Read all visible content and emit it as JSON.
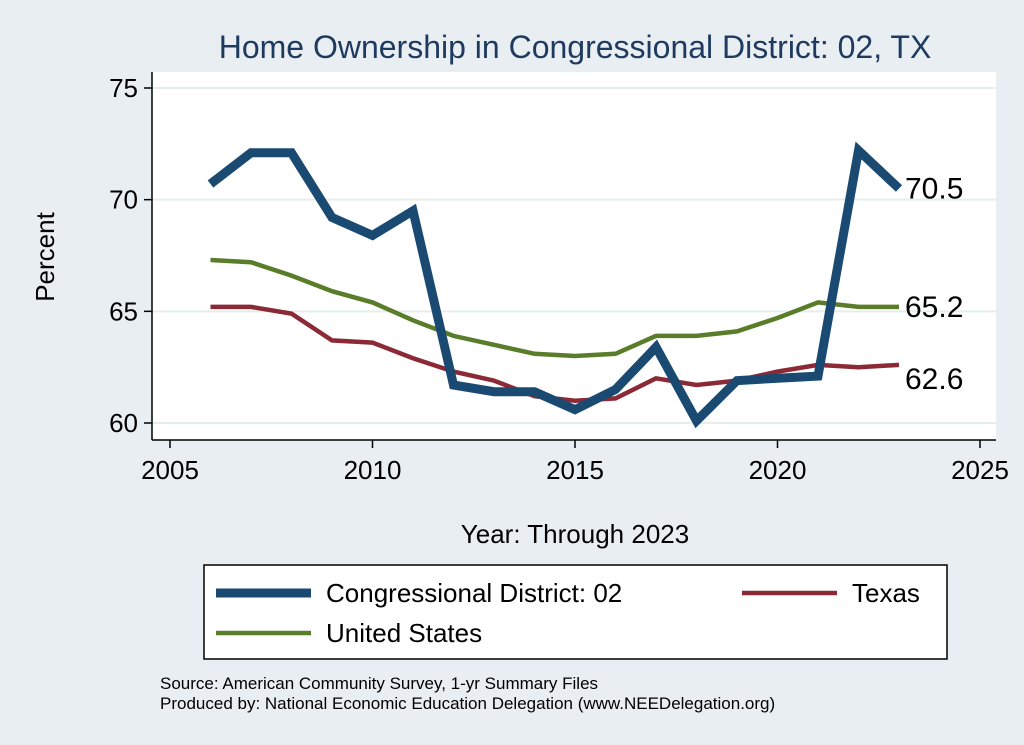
{
  "chart_data": {
    "type": "line",
    "title": "Home Ownership in Congressional District:  02, TX",
    "xlabel": "Year: Through 2023",
    "ylabel": "Percent",
    "xlim": [
      2005,
      2025
    ],
    "ylim": [
      60,
      75
    ],
    "xticks": [
      2005,
      2010,
      2015,
      2020,
      2025
    ],
    "yticks": [
      60,
      65,
      70,
      75
    ],
    "grid": true,
    "series": [
      {
        "name": "Congressional District:  02",
        "color": "#1a4a72",
        "x": [
          2006,
          2007,
          2008,
          2009,
          2010,
          2011,
          2012,
          2013,
          2014,
          2015,
          2016,
          2017,
          2018,
          2019,
          2020,
          2021,
          2022,
          2023
        ],
        "values": [
          70.7,
          72.1,
          72.1,
          69.2,
          68.4,
          69.5,
          61.7,
          61.4,
          61.4,
          60.6,
          61.5,
          63.4,
          60.1,
          61.9,
          62.0,
          62.1,
          72.2,
          70.5
        ],
        "end_label": "70.5"
      },
      {
        "name": "Texas",
        "color": "#8b2a36",
        "x": [
          2006,
          2007,
          2008,
          2009,
          2010,
          2011,
          2012,
          2013,
          2014,
          2015,
          2016,
          2017,
          2018,
          2019,
          2020,
          2021,
          2022,
          2023
        ],
        "values": [
          65.2,
          65.2,
          64.9,
          63.7,
          63.6,
          62.9,
          62.3,
          61.9,
          61.2,
          61.0,
          61.1,
          62.0,
          61.7,
          61.9,
          62.3,
          62.6,
          62.5,
          62.6
        ],
        "end_label": "62.6"
      },
      {
        "name": "United States",
        "color": "#5a7d2a",
        "x": [
          2006,
          2007,
          2008,
          2009,
          2010,
          2011,
          2012,
          2013,
          2014,
          2015,
          2016,
          2017,
          2018,
          2019,
          2020,
          2021,
          2022,
          2023
        ],
        "values": [
          67.3,
          67.2,
          66.6,
          65.9,
          65.4,
          64.6,
          63.9,
          63.5,
          63.1,
          63.0,
          63.1,
          63.9,
          63.9,
          64.1,
          64.7,
          65.4,
          65.2,
          65.2
        ],
        "end_label": "65.2"
      }
    ],
    "legend": {
      "placement": "bottom",
      "entries": [
        "Congressional District:  02",
        "Texas",
        "United States"
      ]
    }
  },
  "source_lines": [
    "Source: American Community Survey, 1-yr Summary Files",
    "Produced by: National Economic Education Delegation (www.NEEDelegation.org)"
  ]
}
